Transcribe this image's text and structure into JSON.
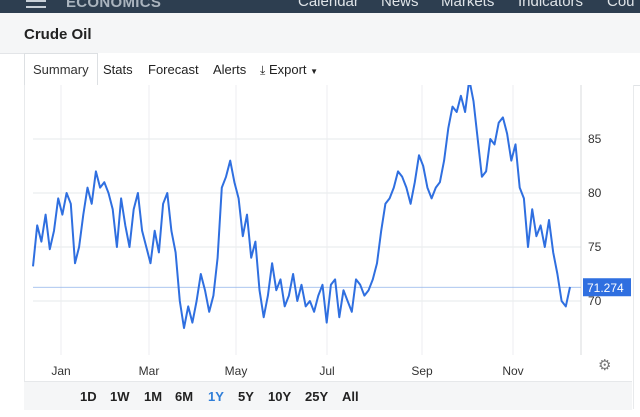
{
  "header": {
    "brand": "ECONOMICS",
    "nav": [
      "Calendar",
      "News",
      "Markets",
      "Indicators",
      "Cou"
    ]
  },
  "page": {
    "title": "Crude Oil"
  },
  "tabs": [
    {
      "label": "Summary",
      "active": true
    },
    {
      "label": "Stats",
      "active": false
    },
    {
      "label": "Forecast",
      "active": false
    },
    {
      "label": "Alerts",
      "active": false
    },
    {
      "label": "Export",
      "icon": "download-icon",
      "dropdown": true,
      "active": false
    }
  ],
  "ranges": {
    "options": [
      "1D",
      "1W",
      "1M",
      "6M",
      "1Y",
      "5Y",
      "10Y",
      "25Y",
      "All"
    ],
    "selected": "1Y"
  },
  "settings_icon": "gear-icon",
  "colors": {
    "line": "#2f6fe0",
    "accent": "#2f7ed8",
    "current_badge": "#2f6fe0",
    "header_bg": "#2d3e50"
  },
  "chart_data": {
    "type": "line",
    "x_tick_labels": [
      "Jan",
      "Mar",
      "May",
      "Jul",
      "Sep",
      "Nov"
    ],
    "y_tick_labels": [
      "70",
      "75",
      "80",
      "85"
    ],
    "ylim": [
      65,
      90
    ],
    "current_value": "71.274",
    "grid": true,
    "series": [
      {
        "values": [
          73.2,
          77.0,
          75.5,
          78.0,
          74.8,
          76.5,
          79.5,
          78.0,
          80.0,
          79.0,
          73.5,
          75.0,
          78.0,
          80.5,
          79.0,
          82.0,
          80.5,
          81.0,
          80.0,
          78.5,
          75.0,
          79.5,
          77.0,
          75.0,
          78.5,
          80.0,
          76.5,
          75.0,
          73.5,
          76.5,
          74.5,
          79.0,
          80.0,
          76.5,
          74.5,
          70.0,
          67.5,
          69.5,
          68.0,
          70.0,
          72.5,
          71.0,
          69.0,
          70.5,
          74.0,
          80.5,
          81.5,
          83.0,
          81.0,
          79.5,
          76.0,
          78.0,
          74.0,
          75.5,
          71.0,
          68.5,
          70.5,
          73.5,
          71.0,
          72.0,
          69.5,
          70.5,
          72.5,
          70.0,
          71.5,
          69.5,
          70.0,
          69.0,
          70.5,
          71.5,
          68.0,
          71.5,
          72.0,
          68.5,
          71.0,
          70.0,
          69.0,
          72.0,
          71.5,
          70.5,
          71.0,
          72.0,
          73.5,
          76.5,
          79.0,
          79.5,
          80.5,
          82.0,
          81.5,
          80.5,
          79.0,
          81.0,
          83.5,
          82.5,
          80.5,
          79.5,
          80.5,
          81.0,
          83.0,
          86.0,
          88.0,
          87.5,
          89.0,
          87.5,
          90.5,
          88.5,
          85.0,
          81.5,
          82.0,
          85.0,
          84.5,
          86.5,
          87.0,
          85.5,
          83.0,
          84.5,
          80.5,
          79.5,
          75.0,
          78.5,
          76.0,
          77.0,
          75.0,
          77.5,
          74.5,
          72.5,
          70.0,
          69.5,
          71.3
        ]
      }
    ]
  }
}
